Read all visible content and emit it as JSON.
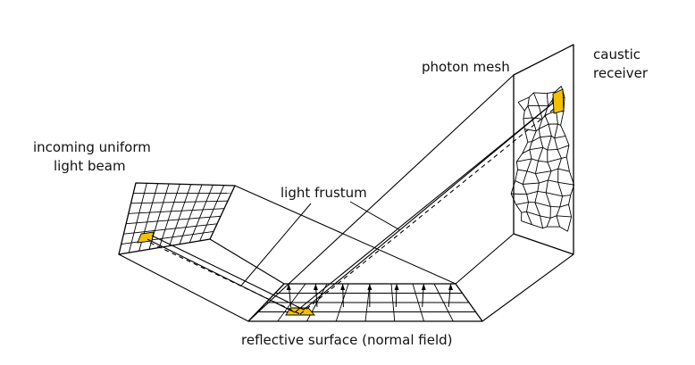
{
  "labels": {
    "incoming_line1": "incoming uniform",
    "incoming_line2": "light beam",
    "light_frustum": "light frustum",
    "photon_mesh": "photon mesh",
    "caustic_line1": "caustic",
    "caustic_line2": "receiver",
    "reflective_surface": "reflective surface (normal field)"
  },
  "colors": {
    "highlight": "#f2c200",
    "line": "#000000",
    "background": "#ffffff"
  }
}
